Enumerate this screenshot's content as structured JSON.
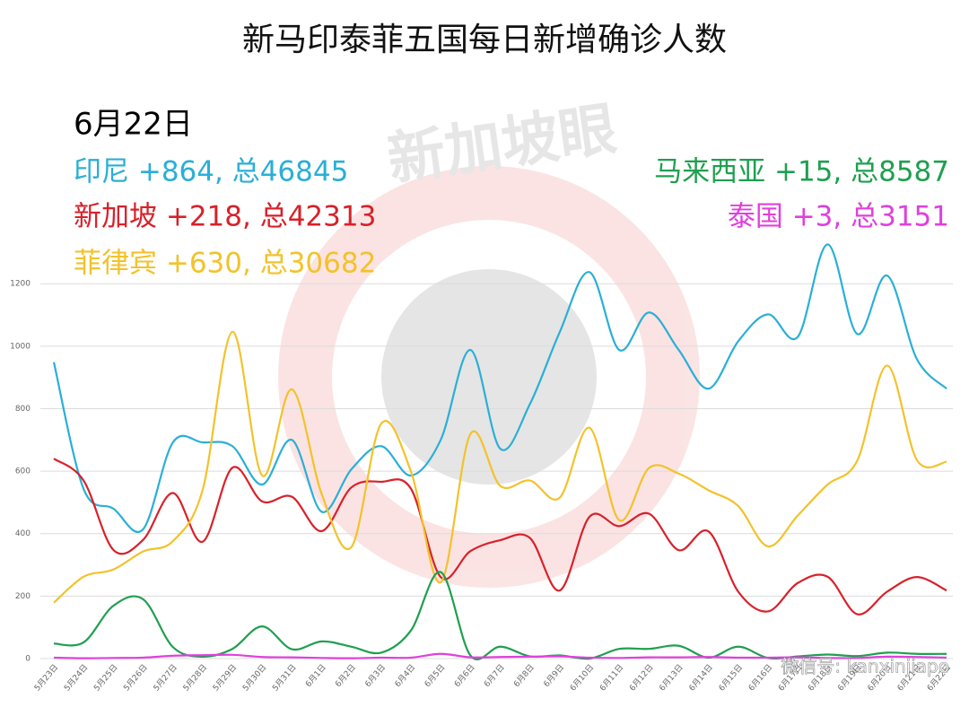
{
  "chart_data": {
    "type": "line",
    "title": "新马印泰菲五国每日新增确诊人数",
    "subtitle": "6月22日",
    "watermark": "新加坡眼",
    "source": "微信号: kanxinjiapo",
    "categories": [
      "5月23日",
      "5月24日",
      "5月25日",
      "5月26日",
      "5月27日",
      "5月28日",
      "5月29日",
      "5月30日",
      "5月31日",
      "6月1日",
      "6月2日",
      "6月3日",
      "6月4日",
      "6月5日",
      "6月6日",
      "6月7日",
      "6月8日",
      "6月9日",
      "6月10日",
      "6月11日",
      "6月12日",
      "6月13日",
      "6月14日",
      "6月15日",
      "6月16日",
      "6月17日",
      "6月18日",
      "6月19日",
      "6月20日",
      "6月21日",
      "6月22日"
    ],
    "ylim": [
      0,
      1350
    ],
    "yticks": [
      0,
      200,
      400,
      600,
      800,
      1000,
      1200
    ],
    "grid": true,
    "series": [
      {
        "name": "印尼 +864, 总46845",
        "color": "#2aafd6",
        "values": [
          949,
          543,
          480,
          414,
          692,
          692,
          680,
          557,
          700,
          470,
          606,
          680,
          586,
          700,
          988,
          672,
          815,
          1045,
          1237,
          988,
          1108,
          988,
          864,
          1016,
          1102,
          1030,
          1326,
          1039,
          1226,
          959,
          864
        ]
      },
      {
        "name": "新加坡 +218, 总42313",
        "color": "#d8212a",
        "values": [
          640,
          570,
          348,
          380,
          530,
          374,
          611,
          503,
          518,
          408,
          548,
          566,
          544,
          261,
          344,
          379,
          386,
          218,
          454,
          424,
          464,
          347,
          407,
          214,
          151,
          242,
          262,
          142,
          214,
          261,
          218
        ]
      },
      {
        "name": "菲律宾 +630, 总30682",
        "color": "#f3c22b",
        "values": [
          179,
          262,
          285,
          343,
          376,
          540,
          1046,
          586,
          862,
          527,
          357,
          752,
          599,
          244,
          719,
          553,
          570,
          515,
          739,
          443,
          610,
          592,
          539,
          488,
          359,
          458,
          557,
          634,
          938,
          636,
          630
        ]
      },
      {
        "name": "马来西亚 +15, 总8587",
        "color": "#1f9f4f",
        "values": [
          48,
          52,
          169,
          190,
          37,
          6,
          31,
          103,
          30,
          55,
          38,
          19,
          90,
          277,
          10,
          38,
          7,
          10,
          0,
          31,
          31,
          41,
          3,
          38,
          2,
          7,
          13,
          8,
          19,
          15,
          15
        ]
      },
      {
        "name": "泰国 +3, 总3151",
        "color": "#e040dd",
        "values": [
          3,
          1,
          2,
          3,
          9,
          11,
          12,
          5,
          4,
          2,
          1,
          3,
          3,
          15,
          4,
          5,
          6,
          7,
          3,
          2,
          4,
          4,
          5,
          3,
          3,
          4,
          2,
          2,
          6,
          5,
          3
        ]
      }
    ]
  }
}
